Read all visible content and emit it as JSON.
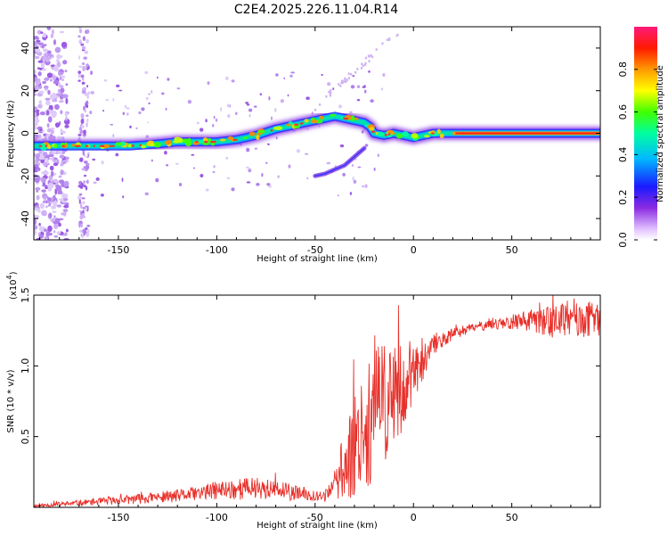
{
  "title": "C2E4.2025.226.11.04.R14",
  "chart_data": [
    {
      "type": "heatmap",
      "xlabel": "Height of straight line (km)",
      "ylabel": "Frequency (Hz)",
      "xlim": [
        -193,
        95
      ],
      "ylim": [
        -50,
        50
      ],
      "xticks": [
        -150,
        -100,
        -50,
        0,
        50
      ],
      "yticks": [
        -40,
        -20,
        0,
        20,
        40
      ],
      "grid": false,
      "ridge": {
        "x": [
          -193,
          -175,
          -160,
          -145,
          -130,
          -120,
          -110,
          -100,
          -90,
          -80,
          -70,
          -60,
          -50,
          -45,
          -40,
          -35,
          -30,
          -25,
          -22,
          -20,
          -15,
          -10,
          -5,
          0,
          5,
          10,
          20,
          40,
          60,
          80,
          95
        ],
        "y": [
          -6,
          -6,
          -6,
          -6,
          -5,
          -4,
          -4,
          -4,
          -3,
          -1,
          2,
          4,
          6,
          7,
          8,
          7,
          6,
          5,
          3,
          0,
          -1,
          0,
          -1,
          -2,
          -1,
          0,
          0,
          0,
          0,
          0,
          0
        ]
      },
      "branch": {
        "x": [
          -50,
          -45,
          -40,
          -35,
          -30,
          -25
        ],
        "y": [
          -20,
          -19,
          -17,
          -15,
          -11,
          -7
        ]
      },
      "colorbar": {
        "label": "Normalized spectral amplitude",
        "min": 0.0,
        "max": 1.0,
        "ticks": [
          "0.0",
          "0.2",
          "0.4",
          "0.6",
          "0.8"
        ]
      }
    },
    {
      "type": "line",
      "xlabel": "Height of straight line (km)",
      "ylabel": "SNR (10 * v/v)",
      "ylabel_scale": "(x10",
      "ylabel_scale_exp": "4",
      "ylabel_scale_close": ")",
      "xlim": [
        -193,
        95
      ],
      "ylim": [
        0,
        1.5
      ],
      "xticks": [
        -150,
        -100,
        -50,
        0,
        50
      ],
      "yticks": [
        "0.5",
        "1.0",
        "1.5"
      ],
      "series": [
        {
          "color": "#e8302a",
          "trend": {
            "x": [
              -193,
              -150,
              -120,
              -100,
              -80,
              -60,
              -45,
              -38,
              -30,
              -20,
              -15,
              -10,
              -5,
              0,
              5,
              10,
              20,
              30,
              40,
              60,
              80,
              95
            ],
            "y": [
              0.01,
              0.05,
              0.08,
              0.12,
              0.14,
              0.1,
              0.08,
              0.2,
              0.45,
              0.65,
              0.75,
              0.78,
              0.85,
              0.95,
              1.0,
              1.15,
              1.22,
              1.27,
              1.3,
              1.32,
              1.32,
              1.33
            ]
          },
          "noise": {
            "x": [
              -193,
              -150,
              -110,
              -90,
              -70,
              -50,
              -40,
              -35,
              -25,
              -15,
              -5,
              5,
              15,
              30,
              55,
              70,
              95
            ],
            "y": [
              0.01,
              0.03,
              0.05,
              0.08,
              0.07,
              0.04,
              0.05,
              0.3,
              0.45,
              0.45,
              0.3,
              0.1,
              0.05,
              0.03,
              0.06,
              0.12,
              0.12
            ]
          },
          "seed": 11
        }
      ]
    }
  ]
}
